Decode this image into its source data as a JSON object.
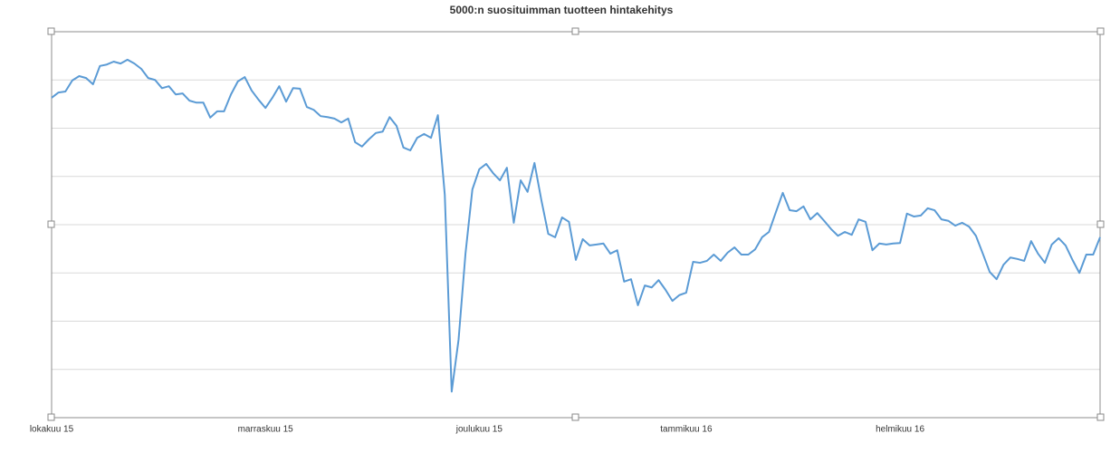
{
  "chart_data": {
    "type": "line",
    "title": "5000:n suosituimman tuotteen hintakehitys",
    "categories": [
      "lokakuu 15",
      null,
      null,
      null,
      null,
      null,
      null,
      null,
      null,
      null,
      null,
      null,
      null,
      null,
      null,
      null,
      null,
      null,
      null,
      null,
      null,
      null,
      null,
      null,
      null,
      null,
      null,
      null,
      null,
      null,
      null,
      "marraskuu 15",
      null,
      null,
      null,
      null,
      null,
      null,
      null,
      null,
      null,
      null,
      null,
      null,
      null,
      null,
      null,
      null,
      null,
      null,
      null,
      null,
      null,
      null,
      null,
      null,
      null,
      null,
      null,
      null,
      null,
      null,
      "joulukuu 15",
      null,
      null,
      null,
      null,
      null,
      null,
      null,
      null,
      null,
      null,
      null,
      null,
      null,
      null,
      null,
      null,
      null,
      null,
      null,
      null,
      null,
      null,
      null,
      null,
      null,
      null,
      null,
      null,
      null,
      "tammikuu 16",
      null,
      null,
      null,
      null,
      null,
      null,
      null,
      null,
      null,
      null,
      null,
      null,
      null,
      null,
      null,
      null,
      null,
      null,
      null,
      null,
      null,
      null,
      null,
      null,
      null,
      null,
      null,
      null,
      null,
      null,
      "helmikuu 16",
      null,
      null,
      null,
      null,
      null,
      null,
      null,
      null,
      null,
      null,
      null,
      null,
      null,
      null,
      null,
      null,
      null,
      null,
      null,
      null,
      null,
      null,
      null,
      null,
      null,
      null,
      null,
      null,
      null
    ],
    "values": [
      6.63,
      6.74,
      6.76,
      6.99,
      7.08,
      7.04,
      6.91,
      7.29,
      7.32,
      7.38,
      7.34,
      7.42,
      7.34,
      7.23,
      7.04,
      7.0,
      6.83,
      6.87,
      6.7,
      6.72,
      6.57,
      6.53,
      6.53,
      6.22,
      6.35,
      6.35,
      6.7,
      6.97,
      7.06,
      6.78,
      6.59,
      6.42,
      6.63,
      6.87,
      6.55,
      6.83,
      6.82,
      6.44,
      6.38,
      6.25,
      6.23,
      6.2,
      6.12,
      6.2,
      5.71,
      5.62,
      5.77,
      5.9,
      5.93,
      6.23,
      6.05,
      5.6,
      5.54,
      5.8,
      5.88,
      5.8,
      6.27,
      4.62,
      0.54,
      1.62,
      3.4,
      4.73,
      5.15,
      5.26,
      5.07,
      4.92,
      5.18,
      4.04,
      4.92,
      4.68,
      5.28,
      4.51,
      3.81,
      3.74,
      4.15,
      4.06,
      3.27,
      3.7,
      3.57,
      3.59,
      3.61,
      3.4,
      3.47,
      2.82,
      2.87,
      2.33,
      2.74,
      2.7,
      2.85,
      2.65,
      2.42,
      2.54,
      2.59,
      3.23,
      3.21,
      3.25,
      3.38,
      3.25,
      3.42,
      3.53,
      3.38,
      3.38,
      3.49,
      3.74,
      3.85,
      4.26,
      4.66,
      4.3,
      4.28,
      4.38,
      4.11,
      4.24,
      4.08,
      3.91,
      3.77,
      3.85,
      3.79,
      4.11,
      4.06,
      3.47,
      3.61,
      3.59,
      3.61,
      3.62,
      4.23,
      4.17,
      4.19,
      4.34,
      4.3,
      4.11,
      4.08,
      3.98,
      4.04,
      3.96,
      3.77,
      3.4,
      3.02,
      2.87,
      3.17,
      3.32,
      3.29,
      3.25,
      3.66,
      3.4,
      3.21,
      3.59,
      3.72,
      3.57,
      3.27,
      3.0,
      3.38,
      3.38,
      3.74
    ],
    "color": "#5b9bd5",
    "ylim": [
      0,
      8
    ],
    "yticks": [
      0,
      1,
      2,
      3,
      4,
      5,
      6,
      7,
      8
    ],
    "grid": true,
    "y_tick_labels": false
  }
}
